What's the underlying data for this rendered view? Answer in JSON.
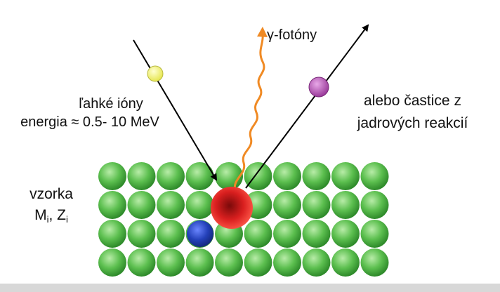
{
  "labels": {
    "ions_line1": "ľahké ióny",
    "ions_line2": "energia ≈ 0.5- 10 MeV",
    "reaction_line1": "alebo častice z",
    "reaction_line2": "jadrových reakcií",
    "photons_gamma": "γ",
    "photons_rest": "-fotóny",
    "sample_line1": "vzorka",
    "sample_M": "M",
    "sample_M_sub": "i",
    "sample_sep": ", ",
    "sample_Z": "Z",
    "sample_Z_sub": "i"
  },
  "colors": {
    "lattice_atom": "#5cbf4f",
    "target_nucleus": "#d91f1f",
    "displaced_atom": "#2340b8",
    "incident_ion": "#f2f27a",
    "reaction_particle": "#b050b0",
    "photon_wave": "#f08a24",
    "arrow": "#000000"
  },
  "icons": [
    "incident-ion-dot",
    "reaction-particle-dot",
    "gamma-photon-wave",
    "target-nucleus"
  ]
}
